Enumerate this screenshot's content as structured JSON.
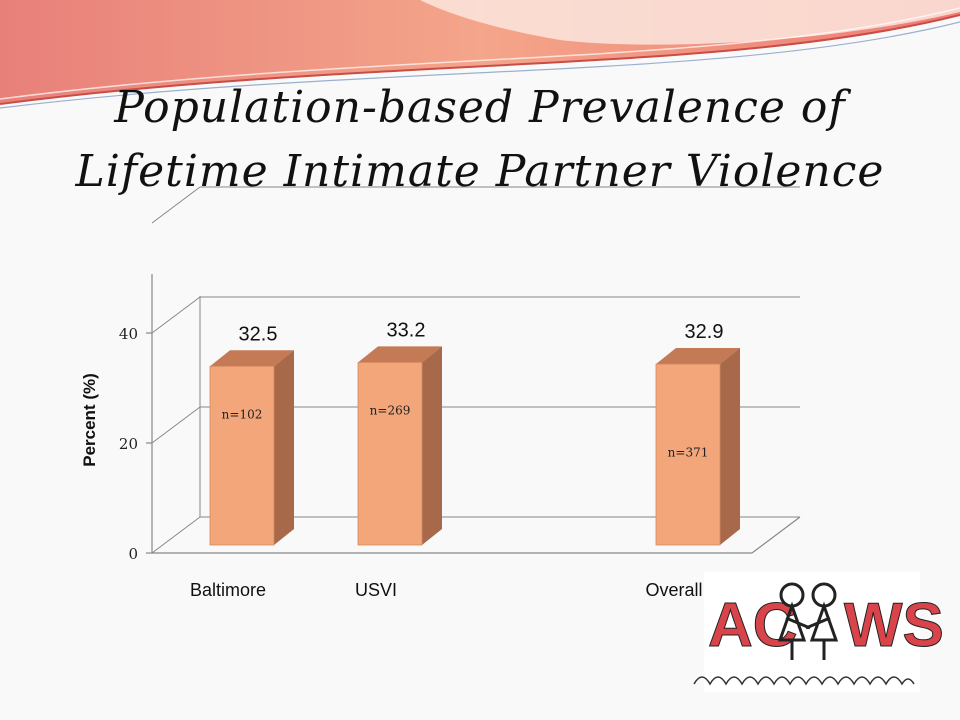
{
  "title_lines": [
    "Population-based Prevalence of",
    "Lifetime Intimate Partner Violence"
  ],
  "logo": {
    "text": "ACWS"
  },
  "colors": {
    "bar_front": "#f2a679",
    "bar_side": "#a8684a",
    "bar_top": "#c47a55",
    "axis": "#888888"
  },
  "chart_data": {
    "type": "bar",
    "categories": [
      "Baltimore",
      "USVI",
      "Overall"
    ],
    "values": [
      32.5,
      33.2,
      32.9
    ],
    "value_labels": [
      "32.5",
      "33.2",
      "32.9"
    ],
    "sample_sizes": [
      "n=102",
      "n=269",
      "n=371"
    ],
    "ylabel": "Percent (%)",
    "yticks": [
      0,
      20,
      40
    ],
    "ylim": [
      0,
      40
    ],
    "grid": true,
    "three_d": true
  }
}
